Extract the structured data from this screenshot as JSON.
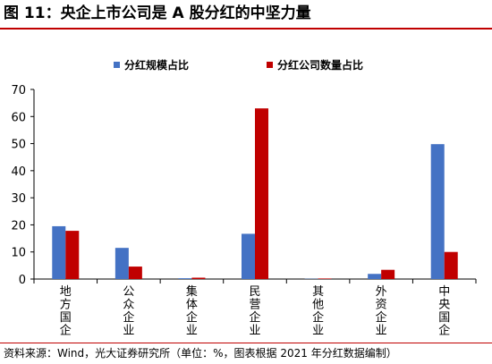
{
  "figure": {
    "title": "图 11：央企上市公司是 A 股分红的中坚力量",
    "source": "资料来源：Wind，光大证券研究所（单位：%，图表根据 2021 年分红数据编制）"
  },
  "colors": {
    "series_1": "#4472c4",
    "series_2": "#c00000",
    "rule": "#c00000"
  },
  "chart_data": {
    "type": "bar",
    "categories": [
      "地方国企",
      "公众企业",
      "集体企业",
      "民营企业",
      "其他企业",
      "外资企业",
      "中央国企"
    ],
    "series": [
      {
        "name": "分红规模占比",
        "values": [
          19.5,
          11.5,
          0.3,
          16.7,
          0.1,
          1.9,
          49.8
        ]
      },
      {
        "name": "分红公司数量占比",
        "values": [
          17.8,
          4.6,
          0.5,
          63.0,
          0.2,
          3.4,
          10.0
        ]
      }
    ],
    "ylim": [
      0,
      70
    ],
    "yticks": [
      0,
      10,
      20,
      30,
      40,
      50,
      60,
      70
    ],
    "grid": false,
    "legend": "top-center"
  }
}
